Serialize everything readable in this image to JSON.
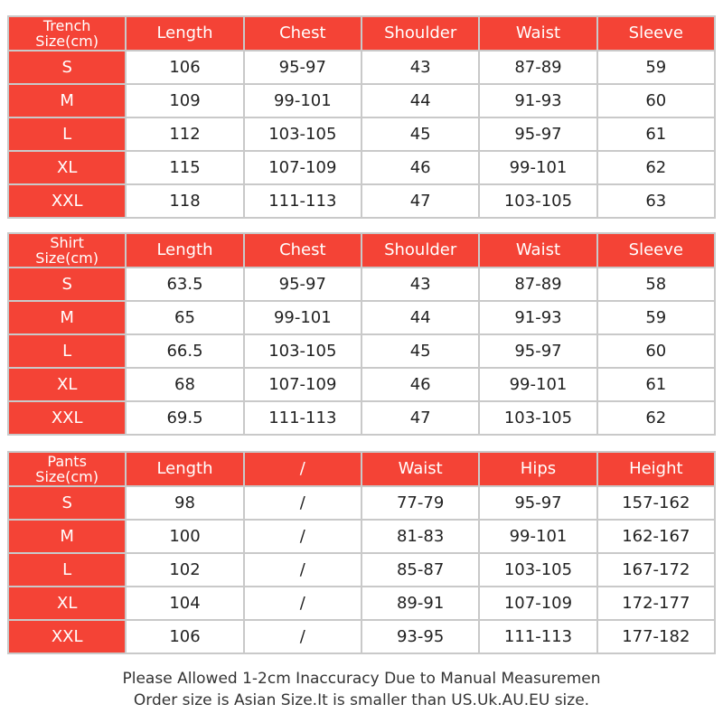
{
  "colors": {
    "header": "#f44336",
    "border": "#c9c9c9"
  },
  "tables": [
    {
      "title": "Trench",
      "unit": "Size(cm)",
      "columns": [
        "Length",
        "Chest",
        "Shoulder",
        "Waist",
        "Sleeve"
      ],
      "rows": [
        [
          "S",
          "106",
          "95-97",
          "43",
          "87-89",
          "59"
        ],
        [
          "M",
          "109",
          "99-101",
          "44",
          "91-93",
          "60"
        ],
        [
          "L",
          "112",
          "103-105",
          "45",
          "95-97",
          "61"
        ],
        [
          "XL",
          "115",
          "107-109",
          "46",
          "99-101",
          "62"
        ],
        [
          "XXL",
          "118",
          "111-113",
          "47",
          "103-105",
          "63"
        ]
      ]
    },
    {
      "title": "Shirt",
      "unit": "Size(cm)",
      "columns": [
        "Length",
        "Chest",
        "Shoulder",
        "Waist",
        "Sleeve"
      ],
      "rows": [
        [
          "S",
          "63.5",
          "95-97",
          "43",
          "87-89",
          "58"
        ],
        [
          "M",
          "65",
          "99-101",
          "44",
          "91-93",
          "59"
        ],
        [
          "L",
          "66.5",
          "103-105",
          "45",
          "95-97",
          "60"
        ],
        [
          "XL",
          "68",
          "107-109",
          "46",
          "99-101",
          "61"
        ],
        [
          "XXL",
          "69.5",
          "111-113",
          "47",
          "103-105",
          "62"
        ]
      ]
    },
    {
      "title": "Pants",
      "unit": "Size(cm)",
      "columns": [
        "Length",
        "/",
        "Waist",
        "Hips",
        "Height"
      ],
      "rows": [
        [
          "S",
          "98",
          "/",
          "77-79",
          "95-97",
          "157-162"
        ],
        [
          "M",
          "100",
          "/",
          "81-83",
          "99-101",
          "162-167"
        ],
        [
          "L",
          "102",
          "/",
          "85-87",
          "103-105",
          "167-172"
        ],
        [
          "XL",
          "104",
          "/",
          "89-91",
          "107-109",
          "172-177"
        ],
        [
          "XXL",
          "106",
          "/",
          "93-95",
          "111-113",
          "177-182"
        ]
      ]
    }
  ],
  "footer": {
    "line1": "Please Allowed 1-2cm Inaccuracy Due to Manual Measuremen",
    "line2": "Order size is Asian Size.It is smaller than US.Uk.AU.EU size."
  }
}
